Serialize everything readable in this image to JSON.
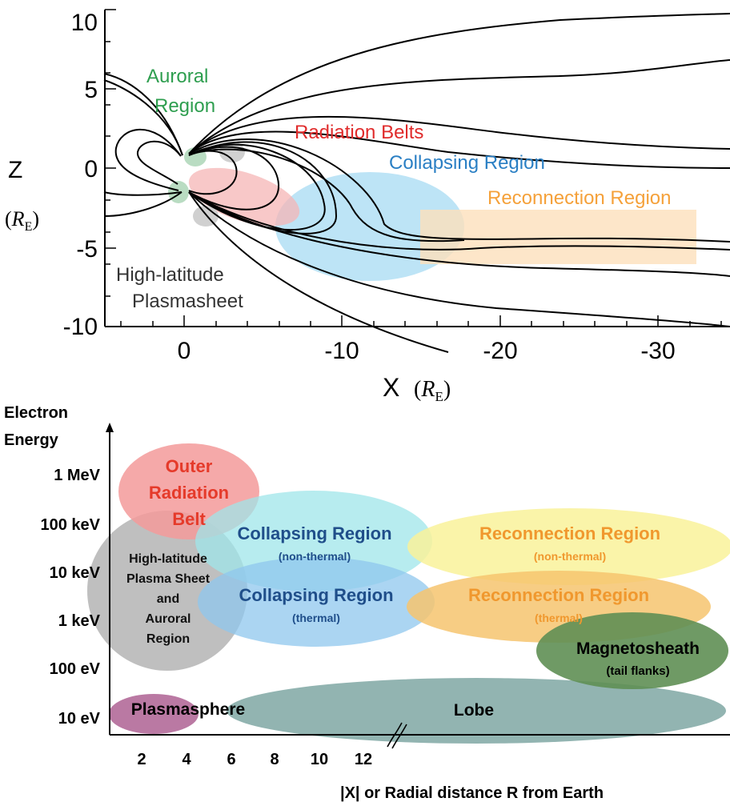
{
  "top_panel": {
    "x_axis": {
      "label_letter": "X",
      "label_unit": "R",
      "label_unit_sub": "E",
      "ticks": [
        "0",
        "-10",
        "-20",
        "-30"
      ]
    },
    "z_axis": {
      "label_letter": "Z",
      "label_unit": "R",
      "label_unit_sub": "E",
      "ticks": [
        "10",
        "5",
        "0",
        "-5",
        "-10"
      ]
    },
    "regions": {
      "auroral_line1": "Auroral",
      "auroral_line2": "Region",
      "radiation_belts": "Radiation Belts",
      "collapsing": "Collapsing Region",
      "reconnection": "Reconnection Region",
      "high_lat_line1": "High-latitude",
      "high_lat_line2": "Plasmasheet"
    },
    "colors": {
      "auroral": "#2e9e4f",
      "radiation": "#e02b2b",
      "collapsing": "#2a7fc4",
      "reconnection": "#f5a13a",
      "high_lat": "#333333"
    }
  },
  "bottom_panel": {
    "y_axis": {
      "title_line1": "Electron",
      "title_line2": "Energy",
      "ticks": [
        "1 MeV",
        "100 keV",
        "10 keV",
        "1 keV",
        "100 eV",
        "10 eV"
      ]
    },
    "x_axis": {
      "ticks": [
        "2",
        "4",
        "6",
        "8",
        "10",
        "12"
      ],
      "title": "|X| or Radial distance R from Earth"
    },
    "regions": {
      "outer_rb_line1": "Outer",
      "outer_rb_line2": "Radiation",
      "outer_rb_line3": "Belt",
      "high_lat_line1": "High-latitude",
      "high_lat_line2": "Plasma Sheet",
      "high_lat_line3": "and",
      "high_lat_line4": "Auroral",
      "high_lat_line5": "Region",
      "collapsing_nt": "Collapsing Region",
      "collapsing_nt_sub": "(non-thermal)",
      "collapsing_th": "Collapsing Region",
      "collapsing_th_sub": "(thermal)",
      "reconnection_nt": "Reconnection Region",
      "reconnection_nt_sub": "(non-thermal)",
      "reconnection_th": "Reconnection Region",
      "reconnection_th_sub": "(thermal)",
      "magnetosheath": "Magnetosheath",
      "magnetosheath_sub": "(tail flanks)",
      "plasmasphere": "Plasmasphere",
      "lobe": "Lobe"
    },
    "colors": {
      "outer_rb": "#f39a9a",
      "outer_rb_text": "#e53a2a",
      "high_lat": "#a9a9a9",
      "collapsing_nt": "#9fe5ea",
      "collapsing_th": "#8fc7ee",
      "collapsing_text": "#1f4e8a",
      "reconnection_nt": "#f9f29a",
      "reconnection_th": "#f6c46f",
      "reconnection_text": "#f0982e",
      "magnetosheath": "#5f8f54",
      "plasmasphere": "#b36a99",
      "lobe": "#7fa7a3"
    }
  }
}
